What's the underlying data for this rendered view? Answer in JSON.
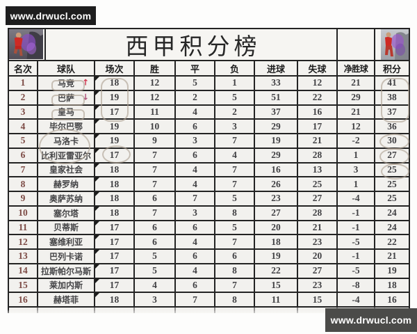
{
  "watermarks": {
    "top_left": "www.drwucl.com",
    "bottom_right": "www.drwucl.com"
  },
  "table": {
    "title": "西甲积分榜",
    "columns": [
      "名次",
      "球队",
      "场次",
      "胜",
      "平",
      "负",
      "进球",
      "失球",
      "净胜球",
      "积分"
    ],
    "rows": [
      {
        "rank": "1",
        "team": "马竞",
        "trend": "up",
        "played": "18",
        "wins": "12",
        "draws": "5",
        "losses": "1",
        "goals_for": "33",
        "goals_against": "12",
        "goal_diff": "21",
        "points": "41"
      },
      {
        "rank": "2",
        "team": "巴萨",
        "trend": "down",
        "played": "19",
        "wins": "12",
        "draws": "2",
        "losses": "5",
        "goals_for": "51",
        "goals_against": "22",
        "goal_diff": "29",
        "points": "38"
      },
      {
        "rank": "3",
        "team": "皇马",
        "trend": "",
        "played": "17",
        "wins": "11",
        "draws": "4",
        "losses": "2",
        "goals_for": "37",
        "goals_against": "16",
        "goal_diff": "21",
        "points": "37"
      },
      {
        "rank": "4",
        "team": "毕尔巴鄂",
        "trend": "",
        "played": "19",
        "wins": "10",
        "draws": "6",
        "losses": "3",
        "goals_for": "29",
        "goals_against": "17",
        "goal_diff": "12",
        "points": "36"
      },
      {
        "rank": "5",
        "team": "马洛卡",
        "trend": "",
        "played": "19",
        "wins": "9",
        "draws": "3",
        "losses": "7",
        "goals_for": "19",
        "goals_against": "21",
        "goal_diff": "-2",
        "points": "30"
      },
      {
        "rank": "6",
        "team": "比利亚雷亚尔",
        "trend": "",
        "played": "17",
        "wins": "7",
        "draws": "6",
        "losses": "4",
        "goals_for": "29",
        "goals_against": "28",
        "goal_diff": "1",
        "points": "27"
      },
      {
        "rank": "7",
        "team": "皇家社会",
        "trend": "",
        "played": "18",
        "wins": "7",
        "draws": "4",
        "losses": "7",
        "goals_for": "16",
        "goals_against": "13",
        "goal_diff": "3",
        "points": "25"
      },
      {
        "rank": "8",
        "team": "赫罗纳",
        "trend": "",
        "played": "18",
        "wins": "7",
        "draws": "4",
        "losses": "7",
        "goals_for": "26",
        "goals_against": "25",
        "goal_diff": "1",
        "points": "25"
      },
      {
        "rank": "9",
        "team": "奥萨苏纳",
        "trend": "",
        "played": "18",
        "wins": "6",
        "draws": "7",
        "losses": "5",
        "goals_for": "23",
        "goals_against": "27",
        "goal_diff": "-4",
        "points": "25"
      },
      {
        "rank": "10",
        "team": "塞尔塔",
        "trend": "",
        "played": "18",
        "wins": "7",
        "draws": "3",
        "losses": "8",
        "goals_for": "27",
        "goals_against": "28",
        "goal_diff": "-1",
        "points": "24"
      },
      {
        "rank": "11",
        "team": "贝蒂斯",
        "trend": "",
        "played": "17",
        "wins": "6",
        "draws": "6",
        "losses": "5",
        "goals_for": "20",
        "goals_against": "21",
        "goal_diff": "-1",
        "points": "24"
      },
      {
        "rank": "12",
        "team": "塞维利亚",
        "trend": "",
        "played": "17",
        "wins": "6",
        "draws": "4",
        "losses": "7",
        "goals_for": "18",
        "goals_against": "23",
        "goal_diff": "-5",
        "points": "22"
      },
      {
        "rank": "13",
        "team": "巴列卡诺",
        "trend": "",
        "played": "17",
        "wins": "5",
        "draws": "6",
        "losses": "6",
        "goals_for": "19",
        "goals_against": "20",
        "goal_diff": "-1",
        "points": "21"
      },
      {
        "rank": "14",
        "team": "拉斯帕尔马斯",
        "trend": "",
        "played": "17",
        "wins": "5",
        "draws": "4",
        "losses": "8",
        "goals_for": "22",
        "goals_against": "27",
        "goal_diff": "-5",
        "points": "19"
      },
      {
        "rank": "15",
        "team": "莱加内斯",
        "trend": "",
        "played": "17",
        "wins": "4",
        "draws": "6",
        "losses": "7",
        "goals_for": "15",
        "goals_against": "23",
        "goal_diff": "-8",
        "points": "18"
      },
      {
        "rank": "16",
        "team": "赫塔菲",
        "trend": "",
        "played": "18",
        "wins": "3",
        "draws": "7",
        "losses": "8",
        "goals_for": "11",
        "goals_against": "15",
        "goal_diff": "-4",
        "points": "16"
      }
    ]
  },
  "icons": {
    "trend_up": "↑",
    "trend_down": "↓",
    "comment_mark": "corner-wedge",
    "corner_photos": [
      "player-photo-left",
      "player-photo-right"
    ]
  },
  "annotations": [
    {
      "shape": "box",
      "around": "马竞"
    },
    {
      "shape": "box",
      "around": "巴萨"
    },
    {
      "shape": "box",
      "around": "皇马"
    },
    {
      "shape": "box",
      "around": "场次 18/19/17 行1-3"
    },
    {
      "shape": "box",
      "around": "积分 41/38/37 行1-3"
    },
    {
      "shape": "ellipse",
      "around": "积分 36"
    },
    {
      "shape": "ellipse",
      "around": "积分 30"
    },
    {
      "shape": "ellipse",
      "around": "积分 27"
    },
    {
      "shape": "ellipse",
      "around": "马洛卡"
    },
    {
      "shape": "ellipse",
      "around": "场次 17 行6"
    }
  ],
  "colors": {
    "border": "#232323",
    "cell_bg": "#f2f1ee",
    "rank_text": "#7c4a44",
    "data_text": "#414144",
    "trend_up": "#d0354e",
    "trend_down": "#b0507a",
    "watermark_top_bg": "#1e1e1e",
    "watermark_bottom_bg": "#4b4b49",
    "annotation": "#aca092"
  }
}
